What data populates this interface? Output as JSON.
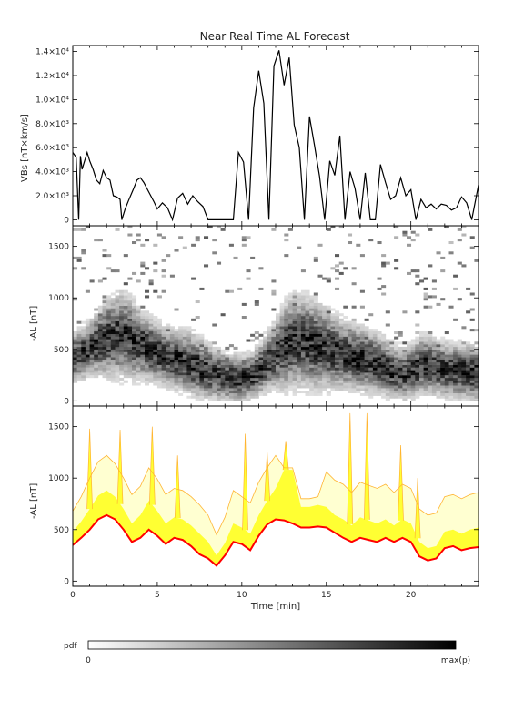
{
  "chart_data": [
    {
      "type": "line",
      "title": "Near Real Time AL Forecast",
      "ylabel": "VBs [nT×km/s]",
      "xlim": [
        0,
        24
      ],
      "ylim": [
        -500,
        14500
      ],
      "yticks": [
        {
          "value": 0,
          "label": "0"
        },
        {
          "value": 2000,
          "label": "2.0×10³"
        },
        {
          "value": 4000,
          "label": "4.0×10³"
        },
        {
          "value": 6000,
          "label": "6.0×10³"
        },
        {
          "value": 8000,
          "label": "8.0×10³"
        },
        {
          "value": 10000,
          "label": "1.0×10⁴"
        },
        {
          "value": 12000,
          "label": "1.2×10⁴"
        },
        {
          "value": 14000,
          "label": "1.4×10⁴"
        }
      ],
      "series": [
        {
          "color": "#000000",
          "x": [
            0,
            0.2,
            0.35,
            0.45,
            0.55,
            0.7,
            0.85,
            1.0,
            1.2,
            1.4,
            1.6,
            1.8,
            2.0,
            2.2,
            2.4,
            2.6,
            2.8,
            2.9,
            3.1,
            3.3,
            3.6,
            3.8,
            4.0,
            4.2,
            4.5,
            4.8,
            5.0,
            5.3,
            5.6,
            5.9,
            6.2,
            6.5,
            6.8,
            7.1,
            7.4,
            7.7,
            8.0,
            8.3,
            8.6,
            8.9,
            9.2,
            9.5,
            9.8,
            10.1,
            10.4,
            10.7,
            11.0,
            11.3,
            11.6,
            11.9,
            12.2,
            12.5,
            12.8,
            13.1,
            13.4,
            13.7,
            14.0,
            14.3,
            14.6,
            14.9,
            15.2,
            15.5,
            15.8,
            16.1,
            16.4,
            16.7,
            17.0,
            17.3,
            17.6,
            17.9,
            18.2,
            18.5,
            18.8,
            19.1,
            19.4,
            19.7,
            20.0,
            20.3,
            20.6,
            20.9,
            21.2,
            21.5,
            21.8,
            22.1,
            22.4,
            22.7,
            23.0,
            23.3,
            23.6,
            24.0
          ],
          "y": [
            5600,
            5200,
            0,
            5300,
            4200,
            4900,
            5600,
            4900,
            4200,
            3300,
            3000,
            4100,
            3500,
            3300,
            2000,
            1900,
            1700,
            0,
            900,
            1600,
            2600,
            3300,
            3500,
            3100,
            2300,
            1500,
            900,
            1400,
            1000,
            0,
            1800,
            2200,
            1300,
            2000,
            1500,
            1100,
            0,
            0,
            0,
            0,
            0,
            0,
            5600,
            4800,
            0,
            9300,
            12400,
            9700,
            0,
            12800,
            14100,
            11200,
            13500,
            7900,
            6000,
            0,
            8600,
            6200,
            3600,
            0,
            4900,
            3700,
            7000,
            0,
            4000,
            2600,
            0,
            3900,
            0,
            0,
            4600,
            3100,
            1700,
            2000,
            3500,
            2000,
            2500,
            0,
            1700,
            1000,
            1300,
            900,
            1300,
            1200,
            800,
            1000,
            1900,
            1400,
            0,
            2900
          ]
        }
      ]
    },
    {
      "type": "heatmap",
      "ylabel": "-AL [nT]",
      "xlim": [
        0,
        24
      ],
      "ylim": [
        -50,
        1700
      ],
      "yticks": [
        0,
        500,
        1000,
        1500
      ],
      "median": [
        420,
        450,
        500,
        560,
        600,
        620,
        640,
        620,
        560,
        520,
        480,
        450,
        420,
        400,
        380,
        350,
        300,
        280,
        250,
        230,
        220,
        220,
        240,
        300,
        380,
        450,
        520,
        560,
        580,
        570,
        540,
        520,
        480,
        460,
        430,
        420,
        400,
        380,
        350,
        300,
        280,
        260,
        300,
        350,
        350,
        320,
        300,
        290,
        280,
        280,
        260
      ],
      "spread": [
        130,
        140,
        150,
        170,
        200,
        220,
        230,
        220,
        200,
        180,
        170,
        160,
        160,
        160,
        170,
        170,
        160,
        150,
        140,
        130,
        130,
        130,
        130,
        140,
        160,
        180,
        230,
        250,
        250,
        250,
        240,
        220,
        200,
        190,
        180,
        180,
        170,
        170,
        160,
        150,
        140,
        140,
        150,
        160,
        160,
        150,
        150,
        150,
        150,
        150,
        150
      ]
    },
    {
      "type": "area",
      "xlabel": "Time [min]",
      "ylabel": "-AL [nT]",
      "xlim": [
        0,
        24
      ],
      "ylim": [
        -50,
        1700
      ],
      "xticks": [
        0,
        5,
        10,
        15,
        20
      ],
      "yticks": [
        0,
        500,
        1000,
        1500
      ],
      "x": [
        0,
        0.5,
        1.0,
        1.5,
        2.0,
        2.5,
        3.0,
        3.5,
        4.0,
        4.5,
        5.0,
        5.5,
        6.0,
        6.5,
        7.0,
        7.5,
        8.0,
        8.5,
        9.0,
        9.5,
        10.0,
        10.5,
        11.0,
        11.5,
        12.0,
        12.5,
        13.0,
        13.5,
        14.0,
        14.5,
        15.0,
        15.5,
        16.0,
        16.5,
        17.0,
        17.5,
        18.0,
        18.5,
        19.0,
        19.5,
        20.0,
        20.5,
        21.0,
        21.5,
        22.0,
        22.5,
        23.0,
        23.5,
        24.0
      ],
      "series": [
        {
          "color": "#ff0000",
          "values": [
            350,
            420,
            500,
            600,
            640,
            600,
            500,
            380,
            420,
            500,
            440,
            360,
            420,
            400,
            340,
            260,
            220,
            150,
            250,
            380,
            360,
            300,
            440,
            550,
            600,
            590,
            560,
            520,
            520,
            530,
            520,
            470,
            420,
            380,
            420,
            400,
            380,
            420,
            380,
            420,
            380,
            240,
            200,
            220,
            320,
            340,
            300,
            320,
            330
          ]
        },
        {
          "color": "#ffff33",
          "values": [
            480,
            580,
            700,
            830,
            880,
            820,
            700,
            560,
            640,
            780,
            680,
            560,
            620,
            600,
            540,
            460,
            380,
            250,
            370,
            560,
            520,
            460,
            640,
            780,
            900,
            1080,
            1080,
            720,
            720,
            740,
            720,
            640,
            600,
            540,
            620,
            590,
            560,
            600,
            540,
            600,
            560,
            380,
            320,
            340,
            480,
            500,
            460,
            500,
            520
          ]
        },
        {
          "color": "#ffff99",
          "values": [
            600,
            720,
            880,
            1020,
            1080,
            1000,
            880,
            720,
            800,
            960,
            860,
            720,
            780,
            760,
            700,
            620,
            520,
            350,
            500,
            740,
            700,
            620,
            820,
            960,
            1080,
            1100,
            1100,
            760,
            760,
            780,
            900,
            820,
            780,
            700,
            800,
            770,
            740,
            780,
            700,
            780,
            740,
            540,
            480,
            500,
            660,
            680,
            640,
            680,
            700
          ]
        },
        {
          "color": "#ffb432",
          "values": [
            680,
            820,
            1000,
            1160,
            1220,
            1140,
            1000,
            840,
            920,
            1100,
            990,
            840,
            900,
            880,
            820,
            740,
            640,
            450,
            620,
            880,
            820,
            760,
            960,
            1100,
            1220,
            1100,
            1100,
            800,
            800,
            820,
            1060,
            980,
            940,
            860,
            960,
            930,
            900,
            940,
            860,
            940,
            900,
            700,
            640,
            660,
            820,
            840,
            800,
            840,
            860
          ]
        }
      ],
      "spikes": [
        {
          "x": 1.0,
          "y": 1480
        },
        {
          "x": 2.8,
          "y": 1470
        },
        {
          "x": 4.7,
          "y": 1500
        },
        {
          "x": 6.2,
          "y": 1220
        },
        {
          "x": 10.2,
          "y": 1430
        },
        {
          "x": 11.5,
          "y": 1250
        },
        {
          "x": 12.6,
          "y": 1360
        },
        {
          "x": 16.4,
          "y": 1630
        },
        {
          "x": 17.4,
          "y": 1630
        },
        {
          "x": 19.4,
          "y": 1320
        },
        {
          "x": 20.4,
          "y": 1000
        }
      ]
    }
  ],
  "colorbar": {
    "label": "pdf",
    "min_label": "0",
    "max_label": "max(p)",
    "low_color": "#ffffff",
    "high_color": "#000000"
  }
}
